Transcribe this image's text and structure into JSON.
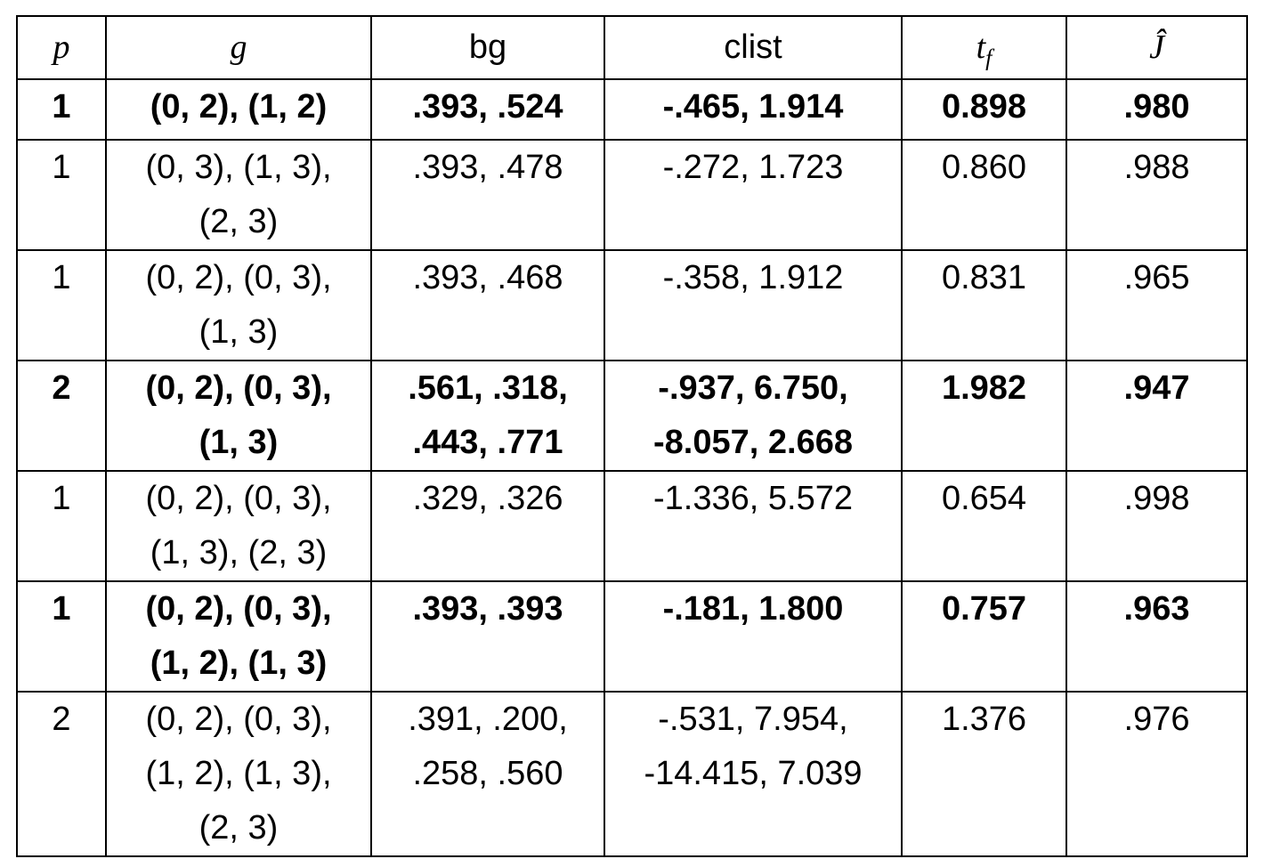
{
  "table": {
    "header": [
      "p",
      "g",
      "bg",
      "clist",
      {
        "text": "t",
        "sub": "f"
      },
      "Ĵ"
    ],
    "rows": [
      {
        "bold": true,
        "cells": [
          [
            "1"
          ],
          [
            "(0, 2), (1, 2)"
          ],
          [
            ".393, .524"
          ],
          [
            "-.465, 1.914"
          ],
          [
            "0.898"
          ],
          [
            ".980"
          ]
        ]
      },
      {
        "bold": false,
        "cells": [
          [
            "1"
          ],
          [
            "(0, 3), (1, 3),",
            "(2, 3)"
          ],
          [
            ".393, .478"
          ],
          [
            "-.272, 1.723"
          ],
          [
            "0.860"
          ],
          [
            ".988"
          ]
        ]
      },
      {
        "bold": false,
        "cells": [
          [
            "1"
          ],
          [
            "(0, 2), (0, 3),",
            "(1, 3)"
          ],
          [
            ".393, .468"
          ],
          [
            "-.358, 1.912"
          ],
          [
            "0.831"
          ],
          [
            ".965"
          ]
        ]
      },
      {
        "bold": true,
        "cells": [
          [
            "2"
          ],
          [
            "(0, 2), (0, 3),",
            "(1, 3)"
          ],
          [
            ".561, .318,",
            ".443, .771"
          ],
          [
            "-.937, 6.750,",
            "-8.057, 2.668"
          ],
          [
            "1.982"
          ],
          [
            ".947"
          ]
        ]
      },
      {
        "bold": false,
        "cells": [
          [
            "1"
          ],
          [
            "(0, 2), (0, 3),",
            "(1, 3), (2, 3)"
          ],
          [
            ".329, .326"
          ],
          [
            "-1.336, 5.572"
          ],
          [
            "0.654"
          ],
          [
            ".998"
          ]
        ]
      },
      {
        "bold": true,
        "cells": [
          [
            "1"
          ],
          [
            "(0, 2), (0, 3),",
            "(1, 2), (1, 3)"
          ],
          [
            ".393, .393"
          ],
          [
            "-.181, 1.800"
          ],
          [
            "0.757"
          ],
          [
            ".963"
          ]
        ]
      },
      {
        "bold": false,
        "cells": [
          [
            "2"
          ],
          [
            "(0, 2), (0, 3),",
            "(1, 2), (1, 3),",
            "(2, 3)"
          ],
          [
            ".391, .200,",
            ".258, .560"
          ],
          [
            "-.531, 7.954,",
            "-14.415, 7.039"
          ],
          [
            "1.376"
          ],
          [
            ".976"
          ]
        ]
      }
    ]
  }
}
